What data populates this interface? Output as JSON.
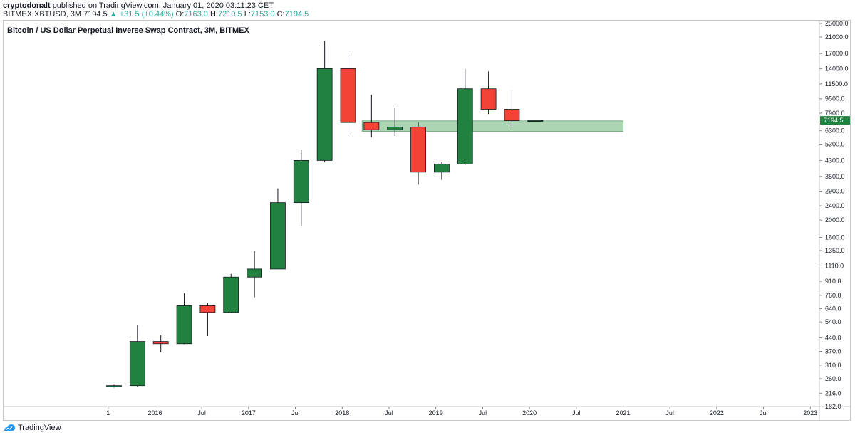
{
  "header": {
    "author": "cryptodonalt",
    "published_text": "published on TradingView.com, January 01, 2020 03:11:23 CET",
    "symbol_text": "BITMEX:XBTUSD, 3M 7194.5",
    "change_arrow": "▲",
    "change_text": "+31.5 (+0.44%)",
    "open_label": "O:",
    "open_value": "7163.0",
    "high_label": "H:",
    "high_value": "7210.5",
    "low_label": "L:",
    "low_value": "7153.0",
    "close_label": "C:",
    "close_value": "7194.5"
  },
  "chart_title": "Bitcoin / US Dollar Perpetual Inverse Swap Contract, 3M, BITMEX",
  "footer": {
    "brand": "TradingView"
  },
  "colors": {
    "up": "#21823f",
    "down": "#f44336",
    "zone": "#7fbf8c",
    "price_tag": "#21823f",
    "axis": "#131722"
  },
  "chart_data": {
    "type": "candlestick",
    "y_scale": "log",
    "ylim": [
      182,
      25000
    ],
    "y_ticks": [
      182.0,
      216.0,
      260.0,
      310.0,
      370.0,
      440.0,
      540.0,
      640.0,
      760.0,
      910.0,
      1110.0,
      1350.0,
      1600.0,
      2000.0,
      2400.0,
      2900.0,
      3500.0,
      4300.0,
      5300.0,
      6300.0,
      7900.0,
      9500.0,
      11500.0,
      14000.0,
      17000.0,
      21000.0,
      25000.0
    ],
    "y_tick_labels": [
      "182.0",
      "216.0",
      "260.0",
      "310.0",
      "370.0",
      "440.0",
      "540.0",
      "640.0",
      "760.0",
      "910.0",
      "1110.0",
      "1350.0",
      "1600.0",
      "2000.0",
      "2400.0",
      "2900.0",
      "3500.0",
      "4300.0",
      "5300.0",
      "6300.0",
      "7900.0",
      "9500.0",
      "11500.0",
      "14000.0",
      "17000.0",
      "21000.0",
      "25000.0"
    ],
    "x_ticks": [
      {
        "label": "1",
        "q": -0.25
      },
      {
        "label": "2016",
        "q": 1.75
      },
      {
        "label": "Jul",
        "q": 3.75
      },
      {
        "label": "2017",
        "q": 5.75
      },
      {
        "label": "Jul",
        "q": 7.75
      },
      {
        "label": "2018",
        "q": 9.75
      },
      {
        "label": "Jul",
        "q": 11.75
      },
      {
        "label": "2019",
        "q": 13.75
      },
      {
        "label": "Jul",
        "q": 15.75
      },
      {
        "label": "2020",
        "q": 17.75
      },
      {
        "label": "Jul",
        "q": 19.75
      },
      {
        "label": "2021",
        "q": 21.75
      },
      {
        "label": "Jul",
        "q": 23.75
      },
      {
        "label": "2022",
        "q": 25.75
      },
      {
        "label": "Jul",
        "q": 27.75
      },
      {
        "label": "2023",
        "q": 29.75
      }
    ],
    "candles": [
      {
        "q": 0,
        "o": 236,
        "h": 241,
        "l": 232,
        "c": 238
      },
      {
        "q": 1,
        "o": 238,
        "h": 520,
        "l": 234,
        "c": 420
      },
      {
        "q": 2,
        "o": 420,
        "h": 455,
        "l": 365,
        "c": 408
      },
      {
        "q": 3,
        "o": 408,
        "h": 780,
        "l": 405,
        "c": 665
      },
      {
        "q": 4,
        "o": 665,
        "h": 690,
        "l": 450,
        "c": 610
      },
      {
        "q": 5,
        "o": 610,
        "h": 1000,
        "l": 604,
        "c": 960
      },
      {
        "q": 6,
        "o": 960,
        "h": 1340,
        "l": 740,
        "c": 1065
      },
      {
        "q": 7,
        "o": 1065,
        "h": 3000,
        "l": 1065,
        "c": 2500
      },
      {
        "q": 8,
        "o": 2500,
        "h": 4950,
        "l": 1850,
        "c": 4300
      },
      {
        "q": 9,
        "o": 4300,
        "h": 20000,
        "l": 4200,
        "c": 14000
      },
      {
        "q": 10,
        "o": 14000,
        "h": 17200,
        "l": 5900,
        "c": 7000
      },
      {
        "q": 11,
        "o": 7000,
        "h": 10000,
        "l": 5800,
        "c": 6380
      },
      {
        "q": 12,
        "o": 6380,
        "h": 8500,
        "l": 5900,
        "c": 6600
      },
      {
        "q": 13,
        "o": 6600,
        "h": 7000,
        "l": 3150,
        "c": 3700
      },
      {
        "q": 14,
        "o": 3700,
        "h": 4200,
        "l": 3350,
        "c": 4100
      },
      {
        "q": 15,
        "o": 4100,
        "h": 14000,
        "l": 4050,
        "c": 10800
      },
      {
        "q": 16,
        "o": 10800,
        "h": 13500,
        "l": 7800,
        "c": 8300
      },
      {
        "q": 17,
        "o": 8300,
        "h": 10500,
        "l": 6500,
        "c": 7163
      },
      {
        "q": 18,
        "o": 7163,
        "h": 7210.5,
        "l": 7153,
        "c": 7194.5
      }
    ],
    "zone": {
      "low": 6250,
      "high": 7150,
      "q_start": 10.6,
      "q_end": 21.75
    },
    "last_price": 7194.5,
    "last_price_label": "7194.5"
  }
}
